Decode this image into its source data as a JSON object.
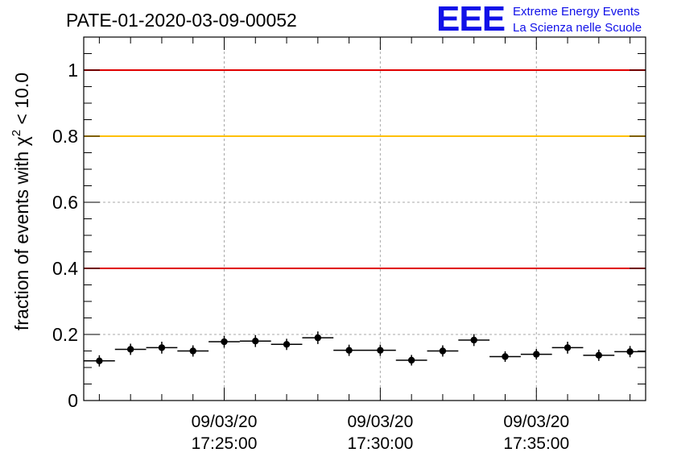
{
  "chart_data": {
    "type": "scatter",
    "title": "PATE-01-2020-03-09-00052",
    "ylabel": "fraction of events with χ² < 10.0",
    "xlabel": "",
    "ylim": [
      0,
      1.1
    ],
    "x_tick_labels": [
      [
        "09/03/20",
        "17:25:00"
      ],
      [
        "09/03/20",
        "17:30:00"
      ],
      [
        "09/03/20",
        "17:35:00"
      ]
    ],
    "y_tick_labels": [
      "0",
      "0.2",
      "0.4",
      "0.6",
      "0.8",
      "1"
    ],
    "grid": true,
    "reference_lines": [
      {
        "y": 1.0,
        "color": "#e00000"
      },
      {
        "y": 0.8,
        "color": "#ffc000"
      },
      {
        "y": 0.4,
        "color": "#e00000"
      }
    ],
    "series": [
      {
        "x": [
          "17:21:00",
          "17:22:00",
          "17:23:00",
          "17:24:00",
          "17:25:00",
          "17:26:00",
          "17:27:00",
          "17:28:00",
          "17:29:00",
          "17:30:00",
          "17:31:00",
          "17:32:00",
          "17:33:00",
          "17:34:00",
          "17:35:00",
          "17:36:00",
          "17:37:00",
          "17:38:00"
        ],
        "values": [
          0.12,
          0.155,
          0.16,
          0.15,
          0.178,
          0.18,
          0.17,
          0.19,
          0.152,
          0.152,
          0.122,
          0.15,
          0.183,
          0.133,
          0.14,
          0.16,
          0.137,
          0.148
        ],
        "errors": [
          0.017,
          0.017,
          0.018,
          0.017,
          0.018,
          0.018,
          0.017,
          0.019,
          0.017,
          0.017,
          0.016,
          0.017,
          0.018,
          0.016,
          0.016,
          0.018,
          0.017,
          0.017
        ],
        "color": "#000000"
      }
    ],
    "x_axis_range": [
      "17:20:30",
      "17:38:30"
    ],
    "bin_width_minutes": 1
  },
  "logo": {
    "mark": "EEE",
    "line1": "Extreme Energy Events",
    "line2": "La Scienza nelle Scuole",
    "color": "#1010e8"
  }
}
